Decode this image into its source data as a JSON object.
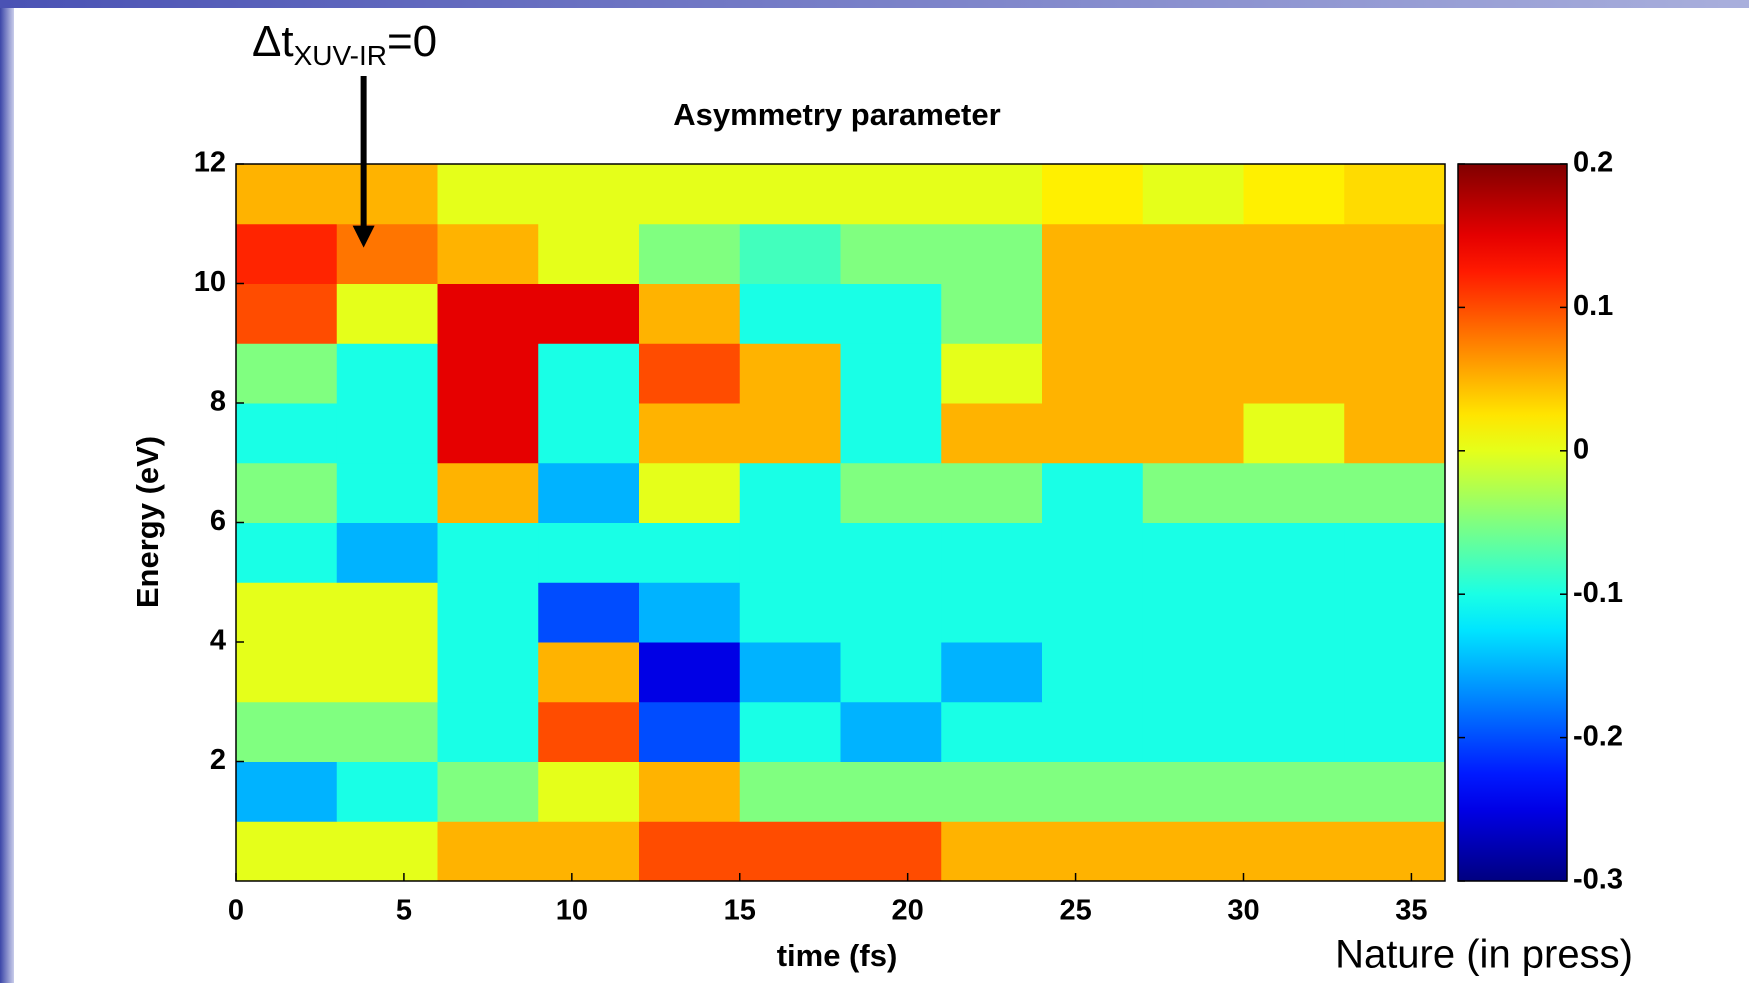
{
  "chart_data": {
    "type": "heatmap",
    "title": "Asymmetry parameter",
    "xlabel": "time (fs)",
    "ylabel": "Energy (eV)",
    "xlim": [
      0,
      36
    ],
    "ylim": [
      0,
      12
    ],
    "xticks": [
      0,
      5,
      10,
      15,
      20,
      25,
      30,
      35
    ],
    "yticks": [
      2,
      4,
      6,
      8,
      10,
      12
    ],
    "zlim": [
      -0.3,
      0.2
    ],
    "zticks": [
      -0.3,
      -0.2,
      -0.1,
      0,
      0.1,
      0.2
    ],
    "colormap": "jet",
    "x": [
      1.5,
      4.5,
      7.5,
      10.5,
      13.5,
      16.5,
      19.5,
      22.5,
      25.5,
      28.5,
      31.5,
      34.5
    ],
    "y": [
      0.5,
      1.5,
      2.5,
      3.5,
      4.5,
      5.5,
      6.5,
      7.5,
      8.5,
      9.5,
      10.5,
      11.5
    ],
    "values": [
      [
        0.0,
        0.0,
        0.05,
        0.05,
        0.1,
        0.1,
        0.1,
        0.05,
        0.05,
        0.05,
        0.05,
        0.05
      ],
      [
        -0.15,
        -0.1,
        -0.05,
        0.0,
        0.05,
        -0.05,
        -0.05,
        -0.05,
        -0.05,
        -0.05,
        -0.05,
        -0.05
      ],
      [
        -0.05,
        -0.05,
        -0.1,
        0.1,
        -0.2,
        -0.1,
        -0.15,
        -0.1,
        -0.1,
        -0.1,
        -0.1,
        -0.1
      ],
      [
        0.0,
        0.0,
        -0.1,
        0.05,
        -0.25,
        -0.15,
        -0.1,
        -0.15,
        -0.1,
        -0.1,
        -0.1,
        -0.1
      ],
      [
        0.0,
        0.0,
        -0.1,
        -0.2,
        -0.15,
        -0.1,
        -0.1,
        -0.1,
        -0.1,
        -0.1,
        -0.1,
        -0.1
      ],
      [
        -0.1,
        -0.15,
        -0.1,
        -0.1,
        -0.1,
        -0.1,
        -0.1,
        -0.1,
        -0.1,
        -0.1,
        -0.1,
        -0.1
      ],
      [
        -0.05,
        -0.1,
        0.05,
        -0.15,
        0.0,
        -0.1,
        -0.05,
        -0.05,
        -0.1,
        -0.05,
        -0.05,
        -0.05
      ],
      [
        -0.1,
        -0.1,
        0.15,
        -0.1,
        0.05,
        0.05,
        -0.1,
        0.05,
        0.05,
        0.05,
        0.0,
        0.05
      ],
      [
        -0.05,
        -0.1,
        0.15,
        -0.1,
        0.1,
        0.05,
        -0.1,
        0.0,
        0.05,
        0.05,
        0.05,
        0.05
      ],
      [
        0.1,
        0.0,
        0.15,
        0.15,
        0.05,
        -0.1,
        -0.1,
        -0.05,
        0.05,
        0.05,
        0.05,
        0.05
      ],
      [
        0.12,
        0.08,
        0.05,
        0.0,
        -0.05,
        -0.08,
        -0.05,
        -0.05,
        0.05,
        0.05,
        0.05,
        0.05
      ],
      [
        0.05,
        0.05,
        0.0,
        0.0,
        0.0,
        0.0,
        0.0,
        0.0,
        0.02,
        0.0,
        0.02,
        0.03
      ]
    ],
    "annotation": {
      "text": "Δt",
      "subscript": "XUV-IR",
      "suffix": "=0",
      "x": 3.8,
      "y": 10.6
    }
  },
  "footer": "Nature (in press)"
}
